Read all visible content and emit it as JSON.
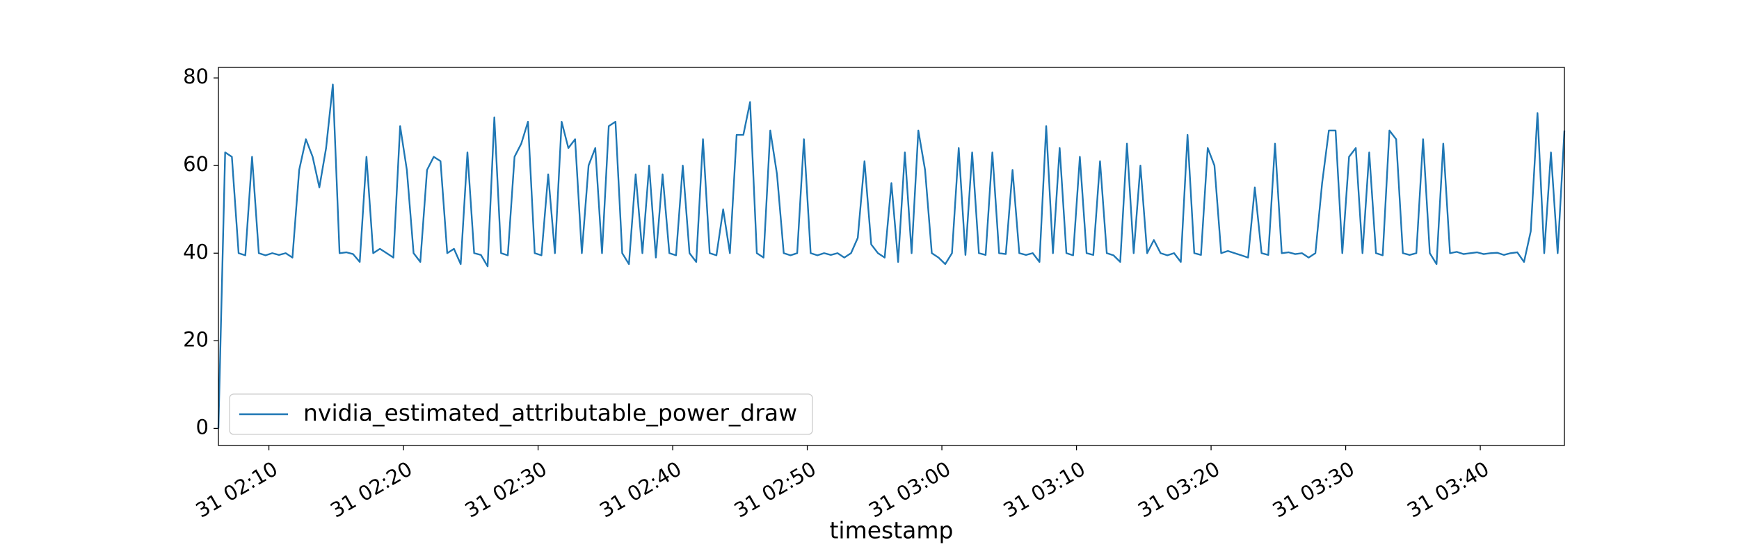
{
  "chart_data": {
    "type": "line",
    "xlabel": "timestamp",
    "legend": "lower left",
    "xlim": [
      "31 02:06:15",
      "31 03:46:15"
    ],
    "xticks": [
      "31 02:10",
      "31 02:20",
      "31 02:30",
      "31 02:40",
      "31 02:50",
      "31 03:00",
      "31 03:10",
      "31 03:20",
      "31 03:30",
      "31 03:40"
    ],
    "ylim": [
      -3.9,
      82.4
    ],
    "yticks": [
      0,
      20,
      40,
      60,
      80
    ],
    "x": [
      "31 02:06:15",
      "31 02:06:45",
      "31 02:07:15",
      "31 02:07:45",
      "31 02:08:15",
      "31 02:08:45",
      "31 02:09:15",
      "31 02:09:45",
      "31 02:10:15",
      "31 02:10:45",
      "31 02:11:15",
      "31 02:11:45",
      "31 02:12:15",
      "31 02:12:45",
      "31 02:13:15",
      "31 02:13:45",
      "31 02:14:15",
      "31 02:14:45",
      "31 02:15:15",
      "31 02:15:45",
      "31 02:16:15",
      "31 02:16:45",
      "31 02:17:15",
      "31 02:17:45",
      "31 02:18:15",
      "31 02:18:45",
      "31 02:19:15",
      "31 02:19:45",
      "31 02:20:15",
      "31 02:20:45",
      "31 02:21:15",
      "31 02:21:45",
      "31 02:22:15",
      "31 02:22:45",
      "31 02:23:15",
      "31 02:23:45",
      "31 02:24:15",
      "31 02:24:45",
      "31 02:25:15",
      "31 02:25:45",
      "31 02:26:15",
      "31 02:26:45",
      "31 02:27:15",
      "31 02:27:45",
      "31 02:28:15",
      "31 02:28:45",
      "31 02:29:15",
      "31 02:29:45",
      "31 02:30:15",
      "31 02:30:45",
      "31 02:31:15",
      "31 02:31:45",
      "31 02:32:15",
      "31 02:32:45",
      "31 02:33:15",
      "31 02:33:45",
      "31 02:34:15",
      "31 02:34:45",
      "31 02:35:15",
      "31 02:35:45",
      "31 02:36:15",
      "31 02:36:45",
      "31 02:37:15",
      "31 02:37:45",
      "31 02:38:15",
      "31 02:38:45",
      "31 02:39:15",
      "31 02:39:45",
      "31 02:40:15",
      "31 02:40:45",
      "31 02:41:15",
      "31 02:41:45",
      "31 02:42:15",
      "31 02:42:45",
      "31 02:43:15",
      "31 02:43:45",
      "31 02:44:15",
      "31 02:44:45",
      "31 02:45:15",
      "31 02:45:45",
      "31 02:46:15",
      "31 02:46:45",
      "31 02:47:15",
      "31 02:47:45",
      "31 02:48:15",
      "31 02:48:45",
      "31 02:49:15",
      "31 02:49:45",
      "31 02:50:15",
      "31 02:50:45",
      "31 02:51:15",
      "31 02:51:45",
      "31 02:52:15",
      "31 02:52:45",
      "31 02:53:15",
      "31 02:53:45",
      "31 02:54:15",
      "31 02:54:45",
      "31 02:55:15",
      "31 02:55:45",
      "31 02:56:15",
      "31 02:56:45",
      "31 02:57:15",
      "31 02:57:45",
      "31 02:58:15",
      "31 02:58:45",
      "31 02:59:15",
      "31 02:59:45",
      "31 03:00:15",
      "31 03:00:45",
      "31 03:01:15",
      "31 03:01:45",
      "31 03:02:15",
      "31 03:02:45",
      "31 03:03:15",
      "31 03:03:45",
      "31 03:04:15",
      "31 03:04:45",
      "31 03:05:15",
      "31 03:05:45",
      "31 03:06:15",
      "31 03:06:45",
      "31 03:07:15",
      "31 03:07:45",
      "31 03:08:15",
      "31 03:08:45",
      "31 03:09:15",
      "31 03:09:45",
      "31 03:10:15",
      "31 03:10:45",
      "31 03:11:15",
      "31 03:11:45",
      "31 03:12:15",
      "31 03:12:45",
      "31 03:13:15",
      "31 03:13:45",
      "31 03:14:15",
      "31 03:14:45",
      "31 03:15:15",
      "31 03:15:45",
      "31 03:16:15",
      "31 03:16:45",
      "31 03:17:15",
      "31 03:17:45",
      "31 03:18:15",
      "31 03:18:45",
      "31 03:19:15",
      "31 03:19:45",
      "31 03:20:15",
      "31 03:20:45",
      "31 03:21:15",
      "31 03:21:45",
      "31 03:22:15",
      "31 03:22:45",
      "31 03:23:15",
      "31 03:23:45",
      "31 03:24:15",
      "31 03:24:45",
      "31 03:25:15",
      "31 03:25:45",
      "31 03:26:15",
      "31 03:26:45",
      "31 03:27:15",
      "31 03:27:45",
      "31 03:28:15",
      "31 03:28:45",
      "31 03:29:15",
      "31 03:29:45",
      "31 03:30:15",
      "31 03:30:45",
      "31 03:31:15",
      "31 03:31:45",
      "31 03:32:15",
      "31 03:32:45",
      "31 03:33:15",
      "31 03:33:45",
      "31 03:34:15",
      "31 03:34:45",
      "31 03:35:15",
      "31 03:35:45",
      "31 03:36:15",
      "31 03:36:45",
      "31 03:37:15",
      "31 03:37:45",
      "31 03:38:15",
      "31 03:38:45",
      "31 03:39:15",
      "31 03:39:45",
      "31 03:40:15",
      "31 03:40:45",
      "31 03:41:15",
      "31 03:41:45",
      "31 03:42:15",
      "31 03:42:45",
      "31 03:43:15",
      "31 03:43:45",
      "31 03:44:15",
      "31 03:44:45",
      "31 03:45:15",
      "31 03:45:45",
      "31 03:46:15"
    ],
    "series": [
      {
        "name": "nvidia_estimated_attributable_power_draw",
        "color": "#1f77b4",
        "values": [
          0,
          63,
          62,
          40,
          39.5,
          62,
          40,
          39.5,
          40,
          39.6,
          40,
          39,
          59,
          66,
          62,
          55,
          64,
          78.5,
          40,
          40.2,
          39.8,
          38,
          62,
          40,
          41,
          40,
          39,
          69,
          59,
          40,
          38,
          59,
          62,
          61,
          40,
          41,
          37.5,
          63,
          40,
          39.6,
          37,
          71,
          40,
          39.5,
          62,
          65,
          70,
          40,
          39.5,
          58,
          40,
          70,
          64,
          66,
          40,
          60,
          64,
          40,
          69,
          70,
          40,
          37.5,
          58,
          40,
          60,
          39,
          58,
          40,
          39.5,
          60,
          40,
          38,
          66,
          40,
          39.5,
          50,
          40,
          67,
          67,
          74.5,
          40,
          39,
          68,
          58,
          40,
          39.5,
          40,
          66,
          40,
          39.5,
          40,
          39.6,
          40,
          39,
          40,
          43.5,
          61,
          42,
          40,
          39,
          56,
          38,
          63,
          40,
          68,
          59,
          40,
          39,
          37.5,
          40,
          64,
          39.6,
          63,
          40,
          39.6,
          63,
          40,
          39.8,
          59,
          40,
          39.6,
          40,
          38,
          69,
          40,
          64,
          40,
          39.5,
          62,
          40,
          39.6,
          61,
          40,
          39.5,
          38,
          65,
          40,
          60,
          40,
          43,
          40,
          39.5,
          40,
          38,
          67,
          40,
          39.6,
          64,
          60,
          40,
          40.5,
          40,
          39.5,
          39,
          55,
          40,
          39.6,
          65,
          40,
          40.2,
          39.8,
          40,
          39,
          40,
          56,
          68,
          68,
          40,
          62,
          64,
          40,
          63,
          40,
          39.5,
          68,
          66,
          40,
          39.6,
          40,
          66,
          40,
          37.5,
          65,
          40,
          40.3,
          39.8,
          40,
          40.2,
          39.8,
          40,
          40.1,
          39.6,
          40,
          40.2,
          38,
          45,
          72,
          40,
          63,
          40,
          68
        ]
      }
    ]
  }
}
